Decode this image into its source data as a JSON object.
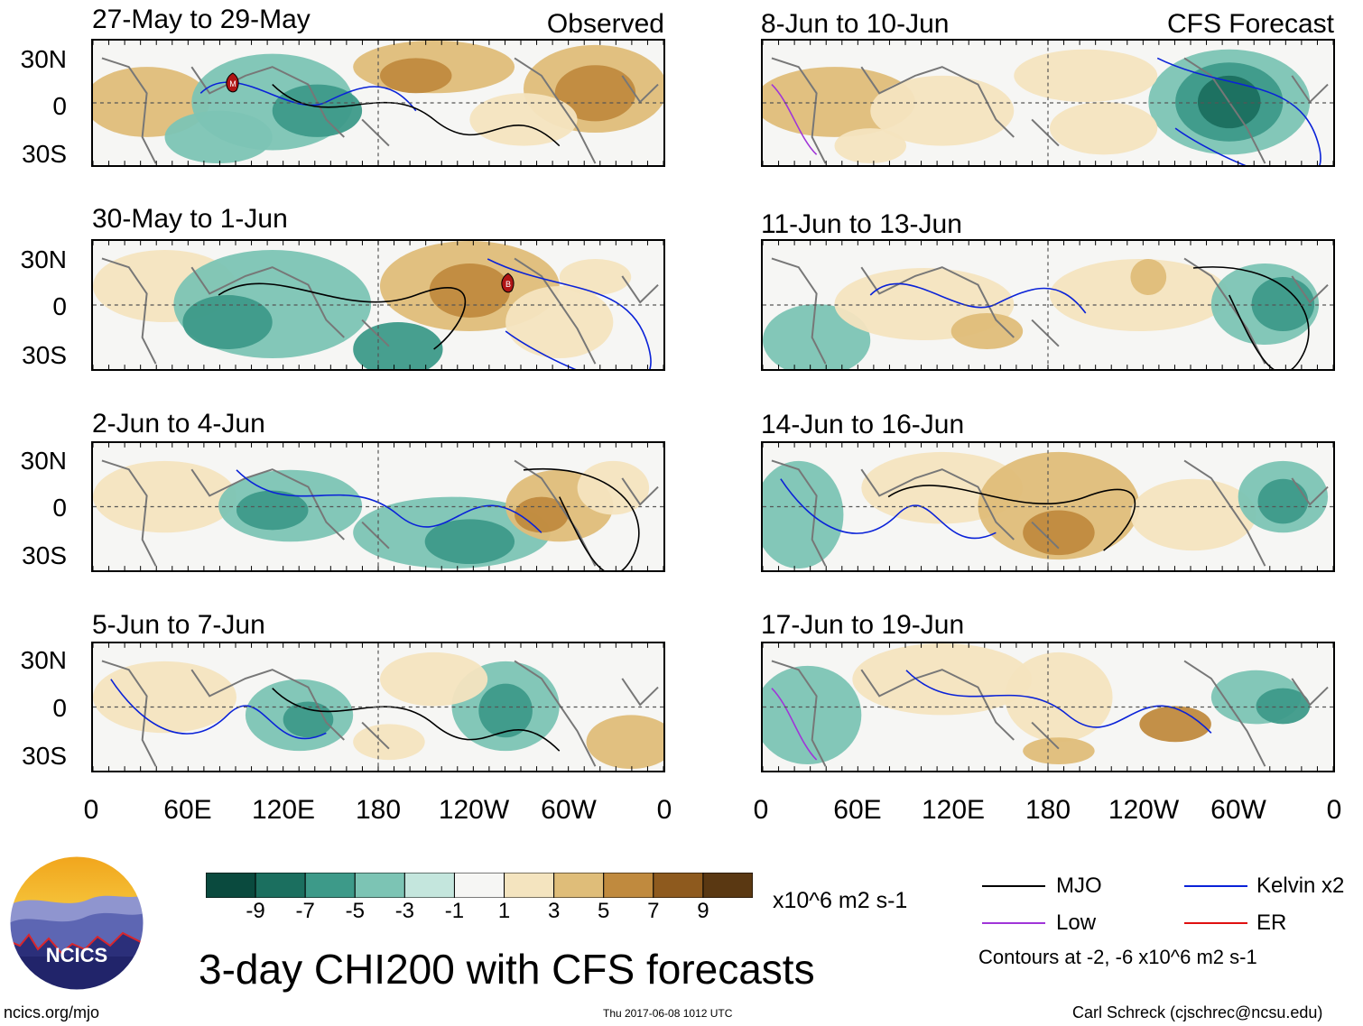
{
  "headers": {
    "observed": "Observed",
    "forecast": "CFS Forecast"
  },
  "panels": [
    {
      "id": "p1",
      "title": "27-May to 29-May",
      "tag": "Observed"
    },
    {
      "id": "p2",
      "title": "30-May to 1-Jun"
    },
    {
      "id": "p3",
      "title": "2-Jun to 4-Jun"
    },
    {
      "id": "p4",
      "title": "5-Jun to 7-Jun"
    },
    {
      "id": "p5",
      "title": "8-Jun to 10-Jun",
      "tag": "CFS Forecast"
    },
    {
      "id": "p6",
      "title": "11-Jun to 13-Jun"
    },
    {
      "id": "p7",
      "title": "14-Jun to 16-Jun"
    },
    {
      "id": "p8",
      "title": "17-Jun to 19-Jun"
    }
  ],
  "lat_labels": [
    "30N",
    "0",
    "30S"
  ],
  "lon_labels": [
    "0",
    "60E",
    "120E",
    "180",
    "120W",
    "60W",
    "0"
  ],
  "colorbar": {
    "colors": [
      "#0a4a3e",
      "#1b6f5f",
      "#3d9a89",
      "#7cc4b4",
      "#c4e6dd",
      "#f6f6f4",
      "#f4e4bf",
      "#dfbd79",
      "#c08a3e",
      "#8e5a1e",
      "#5a3812"
    ],
    "labels": [
      "-9",
      "-7",
      "-5",
      "-3",
      "-1",
      "1",
      "3",
      "5",
      "7",
      "9"
    ],
    "units": "x10^6 m2 s-1"
  },
  "legend": {
    "items": [
      {
        "label": "MJO",
        "color": "#000000"
      },
      {
        "label": "Kelvin x2",
        "color": "#0a22d8"
      },
      {
        "label": "Low",
        "color": "#a035d8"
      },
      {
        "label": "ER",
        "color": "#e01010"
      }
    ],
    "note": "Contours at -2, -6 x10^6 m2 s-1"
  },
  "storm_markers": [
    {
      "panel": "p1",
      "letter": "M"
    },
    {
      "panel": "p2",
      "letter": "B"
    }
  ],
  "logo_text": "NCICS",
  "title": "3-day CHI200 with CFS forecasts",
  "footer": {
    "left": "ncics.org/mjo",
    "center": "Thu 2017-06-08 1012 UTC",
    "right": "Carl Schreck (cjschrec@ncsu.edu)"
  }
}
